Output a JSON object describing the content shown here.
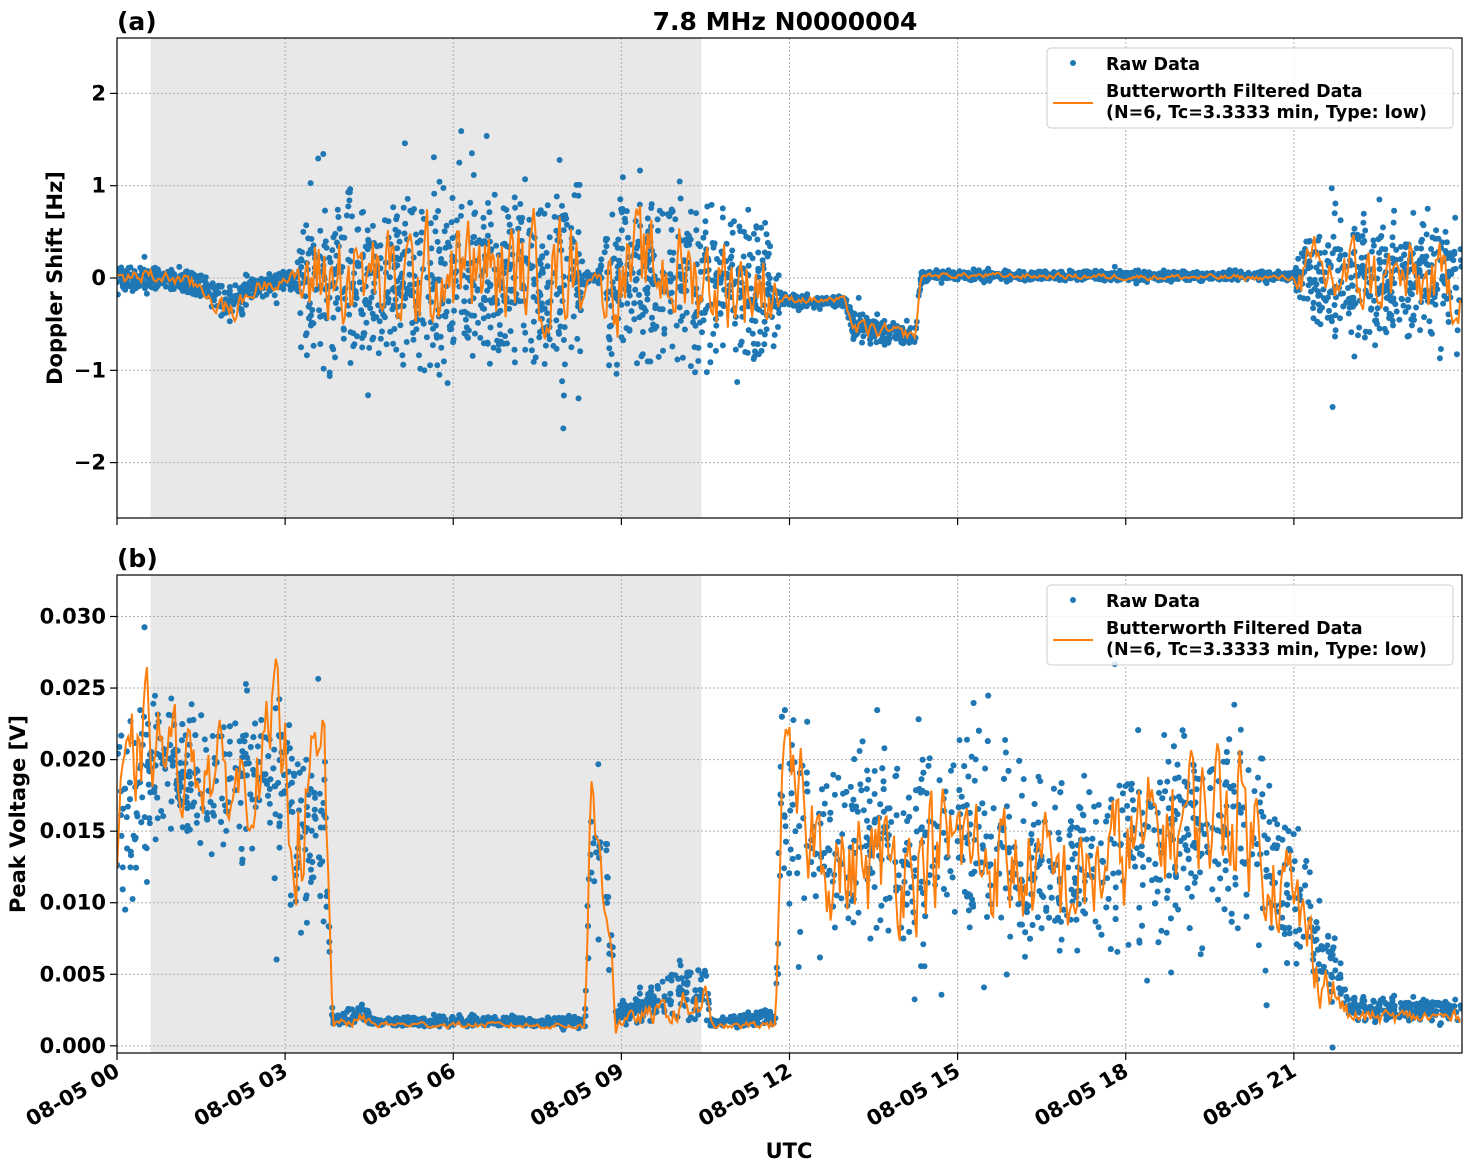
{
  "title": "7.8 MHz N0000004",
  "xlabel": "UTC",
  "colors": {
    "raw": "#1f77b4",
    "filtered": "#ff7f0e",
    "shade": "#e8e8e8"
  },
  "chart_data": [
    {
      "panel_label": "(a)",
      "type": "scatter+line",
      "ylabel": "Doppler Shift [Hz]",
      "xlim_hours": [
        0,
        24
      ],
      "ylim": [
        -2.6,
        2.6
      ],
      "yticks": [
        -2,
        -1,
        0,
        1,
        2
      ],
      "ytick_labels": [
        "−2",
        "−1",
        "0",
        "1",
        "2"
      ],
      "xtick_hours": [
        0,
        3,
        6,
        9,
        12,
        15,
        18,
        21
      ],
      "xtick_labels": [
        "08-05 00",
        "08-05 03",
        "08-05 06",
        "08-05 09",
        "08-05 12",
        "08-05 15",
        "08-05 18",
        "08-05 21"
      ],
      "grid": true,
      "shaded_interval_hours": [
        0.6,
        10.43
      ],
      "legend": {
        "placement": "upper right",
        "entries": [
          "Raw Data",
          "Butterworth Filtered Data",
          "(N=6, Tc=3.3333 min, Type: low)"
        ]
      },
      "series_columns": [
        "hour",
        "raw_low",
        "raw_high",
        "filtered"
      ],
      "series": [
        [
          0,
          -0.2,
          0.2,
          0.0
        ],
        [
          0.5,
          -0.2,
          0.2,
          0.02
        ],
        [
          1,
          -0.2,
          0.15,
          0.0
        ],
        [
          1.5,
          -0.3,
          0.1,
          -0.1
        ],
        [
          2,
          -0.6,
          0.05,
          -0.4
        ],
        [
          2.5,
          -0.3,
          0.1,
          -0.1
        ],
        [
          3,
          -0.2,
          0.15,
          0.0
        ],
        [
          3.2,
          -0.2,
          0.15,
          0.0
        ],
        [
          3.3,
          -1.3,
          1.3,
          -0.05
        ],
        [
          4,
          -1.4,
          1.4,
          0.05
        ],
        [
          5,
          -1.4,
          1.4,
          -0.1
        ],
        [
          6,
          -1.5,
          1.4,
          0.1
        ],
        [
          7,
          -1.4,
          1.4,
          0.0
        ],
        [
          8,
          -1.4,
          1.4,
          0.15
        ],
        [
          8.25,
          -1.4,
          1.4,
          0.1
        ],
        [
          8.35,
          -0.1,
          0.1,
          0.02
        ],
        [
          8.6,
          -0.1,
          0.1,
          0.02
        ],
        [
          8.7,
          -1.3,
          1.4,
          0.0
        ],
        [
          9.5,
          -1.3,
          1.4,
          0.1
        ],
        [
          10.5,
          -1.3,
          1.3,
          0.0
        ],
        [
          11.7,
          -1.3,
          1.1,
          -0.1
        ],
        [
          11.85,
          -0.35,
          -0.15,
          -0.22
        ],
        [
          13.0,
          -0.35,
          -0.15,
          -0.25
        ],
        [
          13.15,
          -0.8,
          -0.3,
          -0.55
        ],
        [
          14.25,
          -0.75,
          -0.5,
          -0.62
        ],
        [
          14.35,
          -0.05,
          0.1,
          0.03
        ],
        [
          21.0,
          -0.05,
          0.1,
          0.0
        ],
        [
          21.2,
          -0.8,
          0.8,
          0.0
        ],
        [
          22,
          -1.0,
          1.0,
          0.0
        ],
        [
          24,
          -1.0,
          0.9,
          -0.1
        ]
      ]
    },
    {
      "panel_label": "(b)",
      "type": "scatter+line",
      "ylabel": "Peak Voltage [V]",
      "xlim_hours": [
        0,
        24
      ],
      "ylim": [
        -0.0005,
        0.0329
      ],
      "yticks": [
        0,
        0.005,
        0.01,
        0.015,
        0.02,
        0.025,
        0.03
      ],
      "ytick_labels": [
        "0.000",
        "0.005",
        "0.010",
        "0.015",
        "0.020",
        "0.025",
        "0.030"
      ],
      "xtick_hours": [
        0,
        3,
        6,
        9,
        12,
        15,
        18,
        21
      ],
      "xtick_labels": [
        "08-05 00",
        "08-05 03",
        "08-05 06",
        "08-05 09",
        "08-05 12",
        "08-05 15",
        "08-05 18",
        "08-05 21"
      ],
      "grid": true,
      "shaded_interval_hours": [
        0.6,
        10.43
      ],
      "legend": {
        "placement": "upper right",
        "entries": [
          "Raw Data",
          "Butterworth Filtered Data",
          "(N=6, Tc=3.3333 min, Type: low)"
        ]
      },
      "series_columns": [
        "hour",
        "raw_low",
        "raw_high",
        "filtered"
      ],
      "series": [
        [
          0,
          0.004,
          0.026,
          0.014
        ],
        [
          0.5,
          0.01,
          0.028,
          0.022
        ],
        [
          1,
          0.012,
          0.027,
          0.02
        ],
        [
          1.5,
          0.01,
          0.026,
          0.02
        ],
        [
          2,
          0.01,
          0.026,
          0.018
        ],
        [
          2.5,
          0.012,
          0.027,
          0.019
        ],
        [
          2.9,
          0.008,
          0.03,
          0.022
        ],
        [
          3.2,
          0.004,
          0.026,
          0.015
        ],
        [
          3.7,
          0.006,
          0.026,
          0.02
        ],
        [
          3.85,
          0.0012,
          0.0022,
          0.0015
        ],
        [
          4.4,
          0.0012,
          0.0035,
          0.0018
        ],
        [
          4.6,
          0.0012,
          0.0022,
          0.0015
        ],
        [
          8.35,
          0.0012,
          0.0022,
          0.0014
        ],
        [
          8.45,
          0.004,
          0.022,
          0.016
        ],
        [
          8.8,
          0.003,
          0.02,
          0.01
        ],
        [
          8.9,
          0.0012,
          0.003,
          0.0016
        ],
        [
          10.5,
          0.0012,
          0.008,
          0.003
        ],
        [
          10.6,
          0.0012,
          0.002,
          0.0013
        ],
        [
          11.75,
          0.0012,
          0.003,
          0.0015
        ],
        [
          11.85,
          0.006,
          0.026,
          0.018
        ],
        [
          13,
          0.004,
          0.024,
          0.012
        ],
        [
          15,
          0.004,
          0.025,
          0.014
        ],
        [
          17,
          0.003,
          0.022,
          0.011
        ],
        [
          19,
          0.004,
          0.026,
          0.016
        ],
        [
          20,
          0.004,
          0.027,
          0.017
        ],
        [
          21,
          0.003,
          0.02,
          0.01
        ],
        [
          21.5,
          0.002,
          0.012,
          0.005
        ],
        [
          22,
          0.0013,
          0.004,
          0.002
        ],
        [
          24,
          0.0013,
          0.0035,
          0.002
        ]
      ]
    }
  ]
}
